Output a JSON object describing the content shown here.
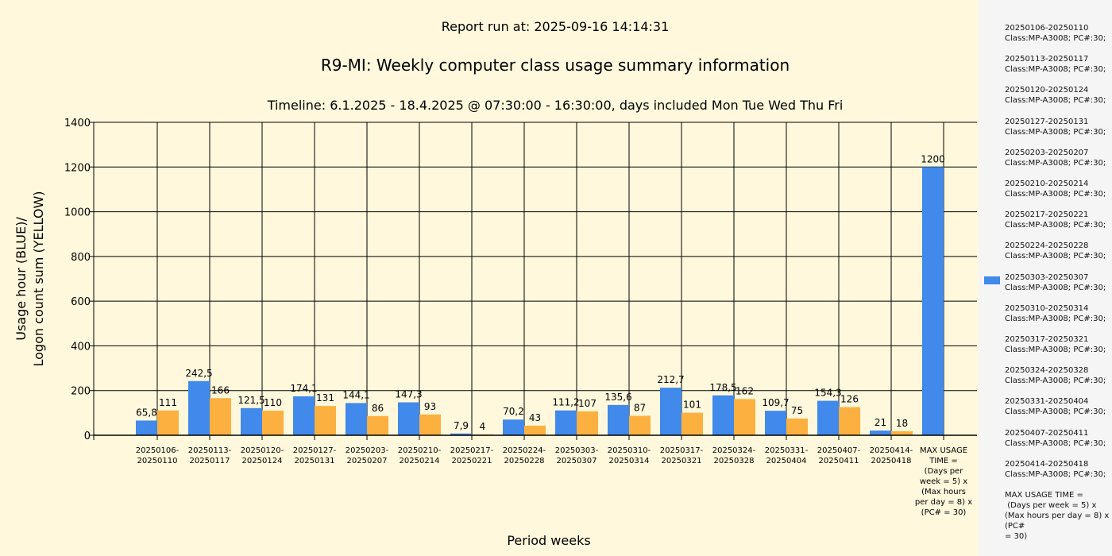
{
  "report_run": "Report run at: 2025-09-16 14:14:31",
  "chart_data": {
    "type": "bar",
    "title": "R9-MI: Weekly computer class usage summary information",
    "subtitle": "Timeline:  6.1.2025  - 18.4.2025  @  07:30:00 -  16:30:00, days included Mon Tue Wed Thu Fri",
    "xlabel": "Period weeks",
    "ylabel_line1": "Usage hour (BLUE)/",
    "ylabel_line2": "Logon count sum (YELLOW)",
    "ylim": [
      0,
      1400
    ],
    "yticks": [
      0,
      200,
      400,
      600,
      800,
      1000,
      1200,
      1400
    ],
    "grid": true,
    "categories": [
      "20250106-\n20250110",
      "20250113-\n20250117",
      "20250120-\n20250124",
      "20250127-\n20250131",
      "20250203-\n20250207",
      "20250210-\n20250214",
      "20250217-\n20250221",
      "20250224-\n20250228",
      "20250303-\n20250307",
      "20250310-\n20250314",
      "20250317-\n20250321",
      "20250324-\n20250328",
      "20250331-\n20250404",
      "20250407-\n20250411",
      "20250414-\n20250418",
      "MAX USAGE\nTIME =\n(Days per\nweek = 5) x\n(Max hours\nper day = 8) x\n(PC# = 30)"
    ],
    "series": [
      {
        "color": "#4189ea",
        "values": [
          65.8,
          242.5,
          121.5,
          174.1,
          144.1,
          147.3,
          7.9,
          70.2,
          111.2,
          135.6,
          212.7,
          178.5,
          109.7,
          154.3,
          21,
          1200
        ],
        "labels": [
          "65,8",
          "242,5",
          "121,5",
          "174,1",
          "144,1",
          "147,3",
          "7,9",
          "70,2",
          "111,2",
          "135,6",
          "212,7",
          "178,5",
          "109,7",
          "154,3",
          "21",
          "1200"
        ]
      },
      {
        "color": "#fbb040",
        "values": [
          111,
          166,
          110,
          131,
          86,
          93,
          4,
          43,
          107,
          87,
          101,
          162,
          75,
          126,
          18,
          null
        ],
        "labels": [
          "111",
          "166",
          "110",
          "131",
          "86",
          "93",
          "4",
          "43",
          "107",
          "87",
          "101",
          "162",
          "75",
          "126",
          "18",
          ""
        ]
      }
    ]
  },
  "legend": {
    "swatch_color": "#4189ea",
    "swatch_index": 8,
    "items": [
      "20250106-20250110\nClass:MP-A3008; PC#:30;",
      "20250113-20250117\nClass:MP-A3008; PC#:30;",
      "20250120-20250124\nClass:MP-A3008; PC#:30;",
      "20250127-20250131\nClass:MP-A3008; PC#:30;",
      "20250203-20250207\nClass:MP-A3008; PC#:30;",
      "20250210-20250214\nClass:MP-A3008; PC#:30;",
      "20250217-20250221\nClass:MP-A3008; PC#:30;",
      "20250224-20250228\nClass:MP-A3008; PC#:30;",
      "20250303-20250307\nClass:MP-A3008; PC#:30;",
      "20250310-20250314\nClass:MP-A3008; PC#:30;",
      "20250317-20250321\nClass:MP-A3008; PC#:30;",
      "20250324-20250328\nClass:MP-A3008; PC#:30;",
      "20250331-20250404\nClass:MP-A3008; PC#:30;",
      "20250407-20250411\nClass:MP-A3008; PC#:30;",
      "20250414-20250418\nClass:MP-A3008; PC#:30;",
      "MAX USAGE TIME =\n (Days per week = 5) x (Max hours per day = 8) x (PC#\n= 30)"
    ]
  }
}
